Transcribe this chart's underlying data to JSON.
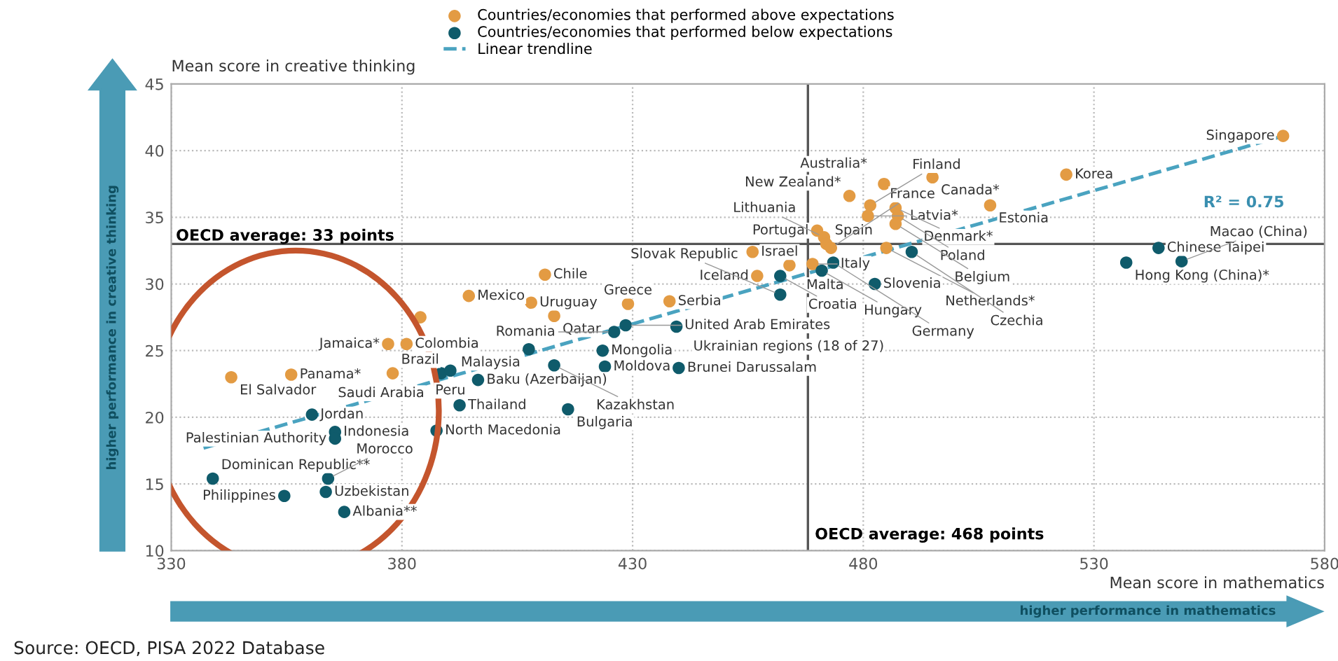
{
  "chart_data": {
    "type": "scatter",
    "xlabel": "Mean score in mathematics",
    "ylabel": "Mean score in creative thinking",
    "xlim": [
      330,
      580
    ],
    "ylim": [
      10,
      45
    ],
    "xticks": [
      330,
      380,
      430,
      480,
      530,
      580
    ],
    "yticks": [
      10,
      15,
      20,
      25,
      30,
      35,
      40,
      45
    ],
    "grid": true,
    "legend": "top",
    "marker": "circle",
    "series": [
      {
        "name": "Countries/economies that performed above expectations",
        "type": "scatter",
        "color": "#e39b43",
        "x": [
          343,
          356,
          378,
          377,
          381,
          384,
          394.5,
          408,
          411,
          413,
          429,
          438,
          456,
          457,
          464,
          469,
          470,
          471.5,
          472,
          473,
          477,
          481.5,
          481,
          484.5,
          487,
          487.5,
          487,
          485,
          495,
          507.5,
          524,
          571
        ],
        "values": [
          23.0,
          23.2,
          23.3,
          25.5,
          25.5,
          27.5,
          29.1,
          28.6,
          30.7,
          27.6,
          28.5,
          28.7,
          32.4,
          30.6,
          31.4,
          31.5,
          34.0,
          33.5,
          33.0,
          32.7,
          36.6,
          35.9,
          35.1,
          37.5,
          35.7,
          35.1,
          34.5,
          32.7,
          38.0,
          35.9,
          38.2,
          41.1
        ]
      },
      {
        "name": "Countries/economies that performed below expectations",
        "type": "scatter",
        "color": "#0f5b6b",
        "x": [
          339,
          354.5,
          360.5,
          363.5,
          364,
          365.5,
          365.5,
          367.5,
          387.5,
          388.5,
          390.5,
          392.5,
          396.5,
          407.5,
          413,
          416,
          423.5,
          424,
          426,
          428.5,
          439.5,
          440,
          462,
          462,
          471,
          473.5,
          482.5,
          490.5,
          537,
          544,
          549
        ],
        "values": [
          15.4,
          14.1,
          20.2,
          14.4,
          15.4,
          18.9,
          18.4,
          12.9,
          19.0,
          23.3,
          23.5,
          20.9,
          22.8,
          25.1,
          23.9,
          20.6,
          25.0,
          23.8,
          26.4,
          26.9,
          26.8,
          23.7,
          30.6,
          29.2,
          31.0,
          31.6,
          30.0,
          32.4,
          31.6,
          32.7,
          31.7
        ]
      },
      {
        "name": "Linear trendline",
        "type": "line",
        "line_style": "dashed",
        "marker": "none",
        "color": "#4aa3c0",
        "x": [
          337,
          570
        ],
        "values": [
          17.7,
          41.0
        ]
      }
    ],
    "ref_lines": [
      {
        "axis": "y",
        "value": 33,
        "label": "OECD average: 33 points",
        "color": "#555555"
      },
      {
        "axis": "x",
        "value": 468,
        "label": "OECD average: 468 points",
        "color": "#555555"
      }
    ],
    "annotations": [
      {
        "text": "El Salvador",
        "x": 343,
        "y": 23.0
      },
      {
        "text": "Panama*",
        "x": 356,
        "y": 23.2
      },
      {
        "text": "Brazil",
        "x": 378,
        "y": 23.3
      },
      {
        "text": "Jamaica*",
        "x": 377,
        "y": 25.5
      },
      {
        "text": "Colombia",
        "x": 381,
        "y": 25.5
      },
      {
        "text": "Mexico",
        "x": 394.5,
        "y": 29.1
      },
      {
        "text": "Uruguay",
        "x": 408,
        "y": 28.6
      },
      {
        "text": "Chile",
        "x": 411,
        "y": 30.7
      },
      {
        "text": "Qatar",
        "x": 413,
        "y": 27.6
      },
      {
        "text": "Greece",
        "x": 429,
        "y": 28.5
      },
      {
        "text": "Serbia",
        "x": 438,
        "y": 28.7
      },
      {
        "text": "Israel",
        "x": 456,
        "y": 32.4
      },
      {
        "text": "Iceland",
        "x": 457,
        "y": 30.6
      },
      {
        "text": "Malta",
        "x": 464,
        "y": 31.4
      },
      {
        "text": "Italy",
        "x": 469,
        "y": 31.5
      },
      {
        "text": "Portugal",
        "x": 470,
        "y": 34.0
      },
      {
        "text": "Lithuania",
        "x": 471.5,
        "y": 33.5
      },
      {
        "text": "Spain",
        "x": 472,
        "y": 33.0
      },
      {
        "text": "France",
        "x": 473,
        "y": 32.7
      },
      {
        "text": "New Zealand*",
        "x": 477,
        "y": 36.6
      },
      {
        "text": "Finland",
        "x": 481.5,
        "y": 35.9
      },
      {
        "text": "Latvia*",
        "x": 481,
        "y": 35.1
      },
      {
        "text": "Australia*",
        "x": 484.5,
        "y": 37.5
      },
      {
        "text": "Denmark*",
        "x": 487,
        "y": 35.7
      },
      {
        "text": "Poland",
        "x": 487.5,
        "y": 35.1
      },
      {
        "text": "Belgium",
        "x": 487,
        "y": 34.5
      },
      {
        "text": "Netherlands*",
        "x": 485,
        "y": 32.7
      },
      {
        "text": "Canada*",
        "x": 495,
        "y": 38.0
      },
      {
        "text": "Estonia",
        "x": 507.5,
        "y": 35.9
      },
      {
        "text": "Korea",
        "x": 524,
        "y": 38.2
      },
      {
        "text": "Singapore",
        "x": 571,
        "y": 41.1
      },
      {
        "text": "Dominican Republic**",
        "x": 339,
        "y": 15.4
      },
      {
        "text": "Philippines",
        "x": 354.5,
        "y": 14.1
      },
      {
        "text": "Jordan",
        "x": 360.5,
        "y": 20.2
      },
      {
        "text": "Uzbekistan",
        "x": 363.5,
        "y": 14.4
      },
      {
        "text": "Morocco",
        "x": 364,
        "y": 15.4
      },
      {
        "text": "Indonesia",
        "x": 365.5,
        "y": 18.9
      },
      {
        "text": "Palestinian Authority",
        "x": 365.5,
        "y": 18.4
      },
      {
        "text": "Albania**",
        "x": 367.5,
        "y": 12.9
      },
      {
        "text": "North Macedonia",
        "x": 387.5,
        "y": 19.0
      },
      {
        "text": "Saudi Arabia",
        "x": 388.5,
        "y": 23.3
      },
      {
        "text": "Peru",
        "x": 390.5,
        "y": 23.5
      },
      {
        "text": "Thailand",
        "x": 392.5,
        "y": 20.9
      },
      {
        "text": "Baku (Azerbaijan)",
        "x": 396.5,
        "y": 22.8
      },
      {
        "text": "Malaysia",
        "x": 407.5,
        "y": 25.1
      },
      {
        "text": "Kazakhstan",
        "x": 413,
        "y": 23.9
      },
      {
        "text": "Bulgaria",
        "x": 416,
        "y": 20.6
      },
      {
        "text": "Mongolia",
        "x": 423.5,
        "y": 25.0
      },
      {
        "text": "Moldova",
        "x": 424,
        "y": 23.8
      },
      {
        "text": "Romania",
        "x": 426,
        "y": 26.4
      },
      {
        "text": "United Arab Emirates",
        "x": 428.5,
        "y": 26.9
      },
      {
        "text": "Ukrainian regions (18 of 27)",
        "x": 439.5,
        "y": 26.8
      },
      {
        "text": "Brunei Darussalam",
        "x": 440,
        "y": 23.7
      },
      {
        "text": "Croatia",
        "x": 462,
        "y": 30.6
      },
      {
        "text": "Slovak Republic",
        "x": 462,
        "y": 29.2
      },
      {
        "text": "Hungary",
        "x": 471,
        "y": 31.0
      },
      {
        "text": "Germany",
        "x": 473.5,
        "y": 31.6
      },
      {
        "text": "Slovenia",
        "x": 482.5,
        "y": 30.0
      },
      {
        "text": "Czechia",
        "x": 490.5,
        "y": 32.4
      },
      {
        "text": "Hong Kong (China)*",
        "x": 537,
        "y": 31.6
      },
      {
        "text": "Chinese Taipei",
        "x": 544,
        "y": 32.7
      },
      {
        "text": "Macao (China)",
        "x": 549,
        "y": 31.7
      },
      "R² = 0.75",
      "higher performance in creative thinking",
      "higher performance in mathematics",
      "Source: OECD, PISA 2022 Database"
    ]
  }
}
